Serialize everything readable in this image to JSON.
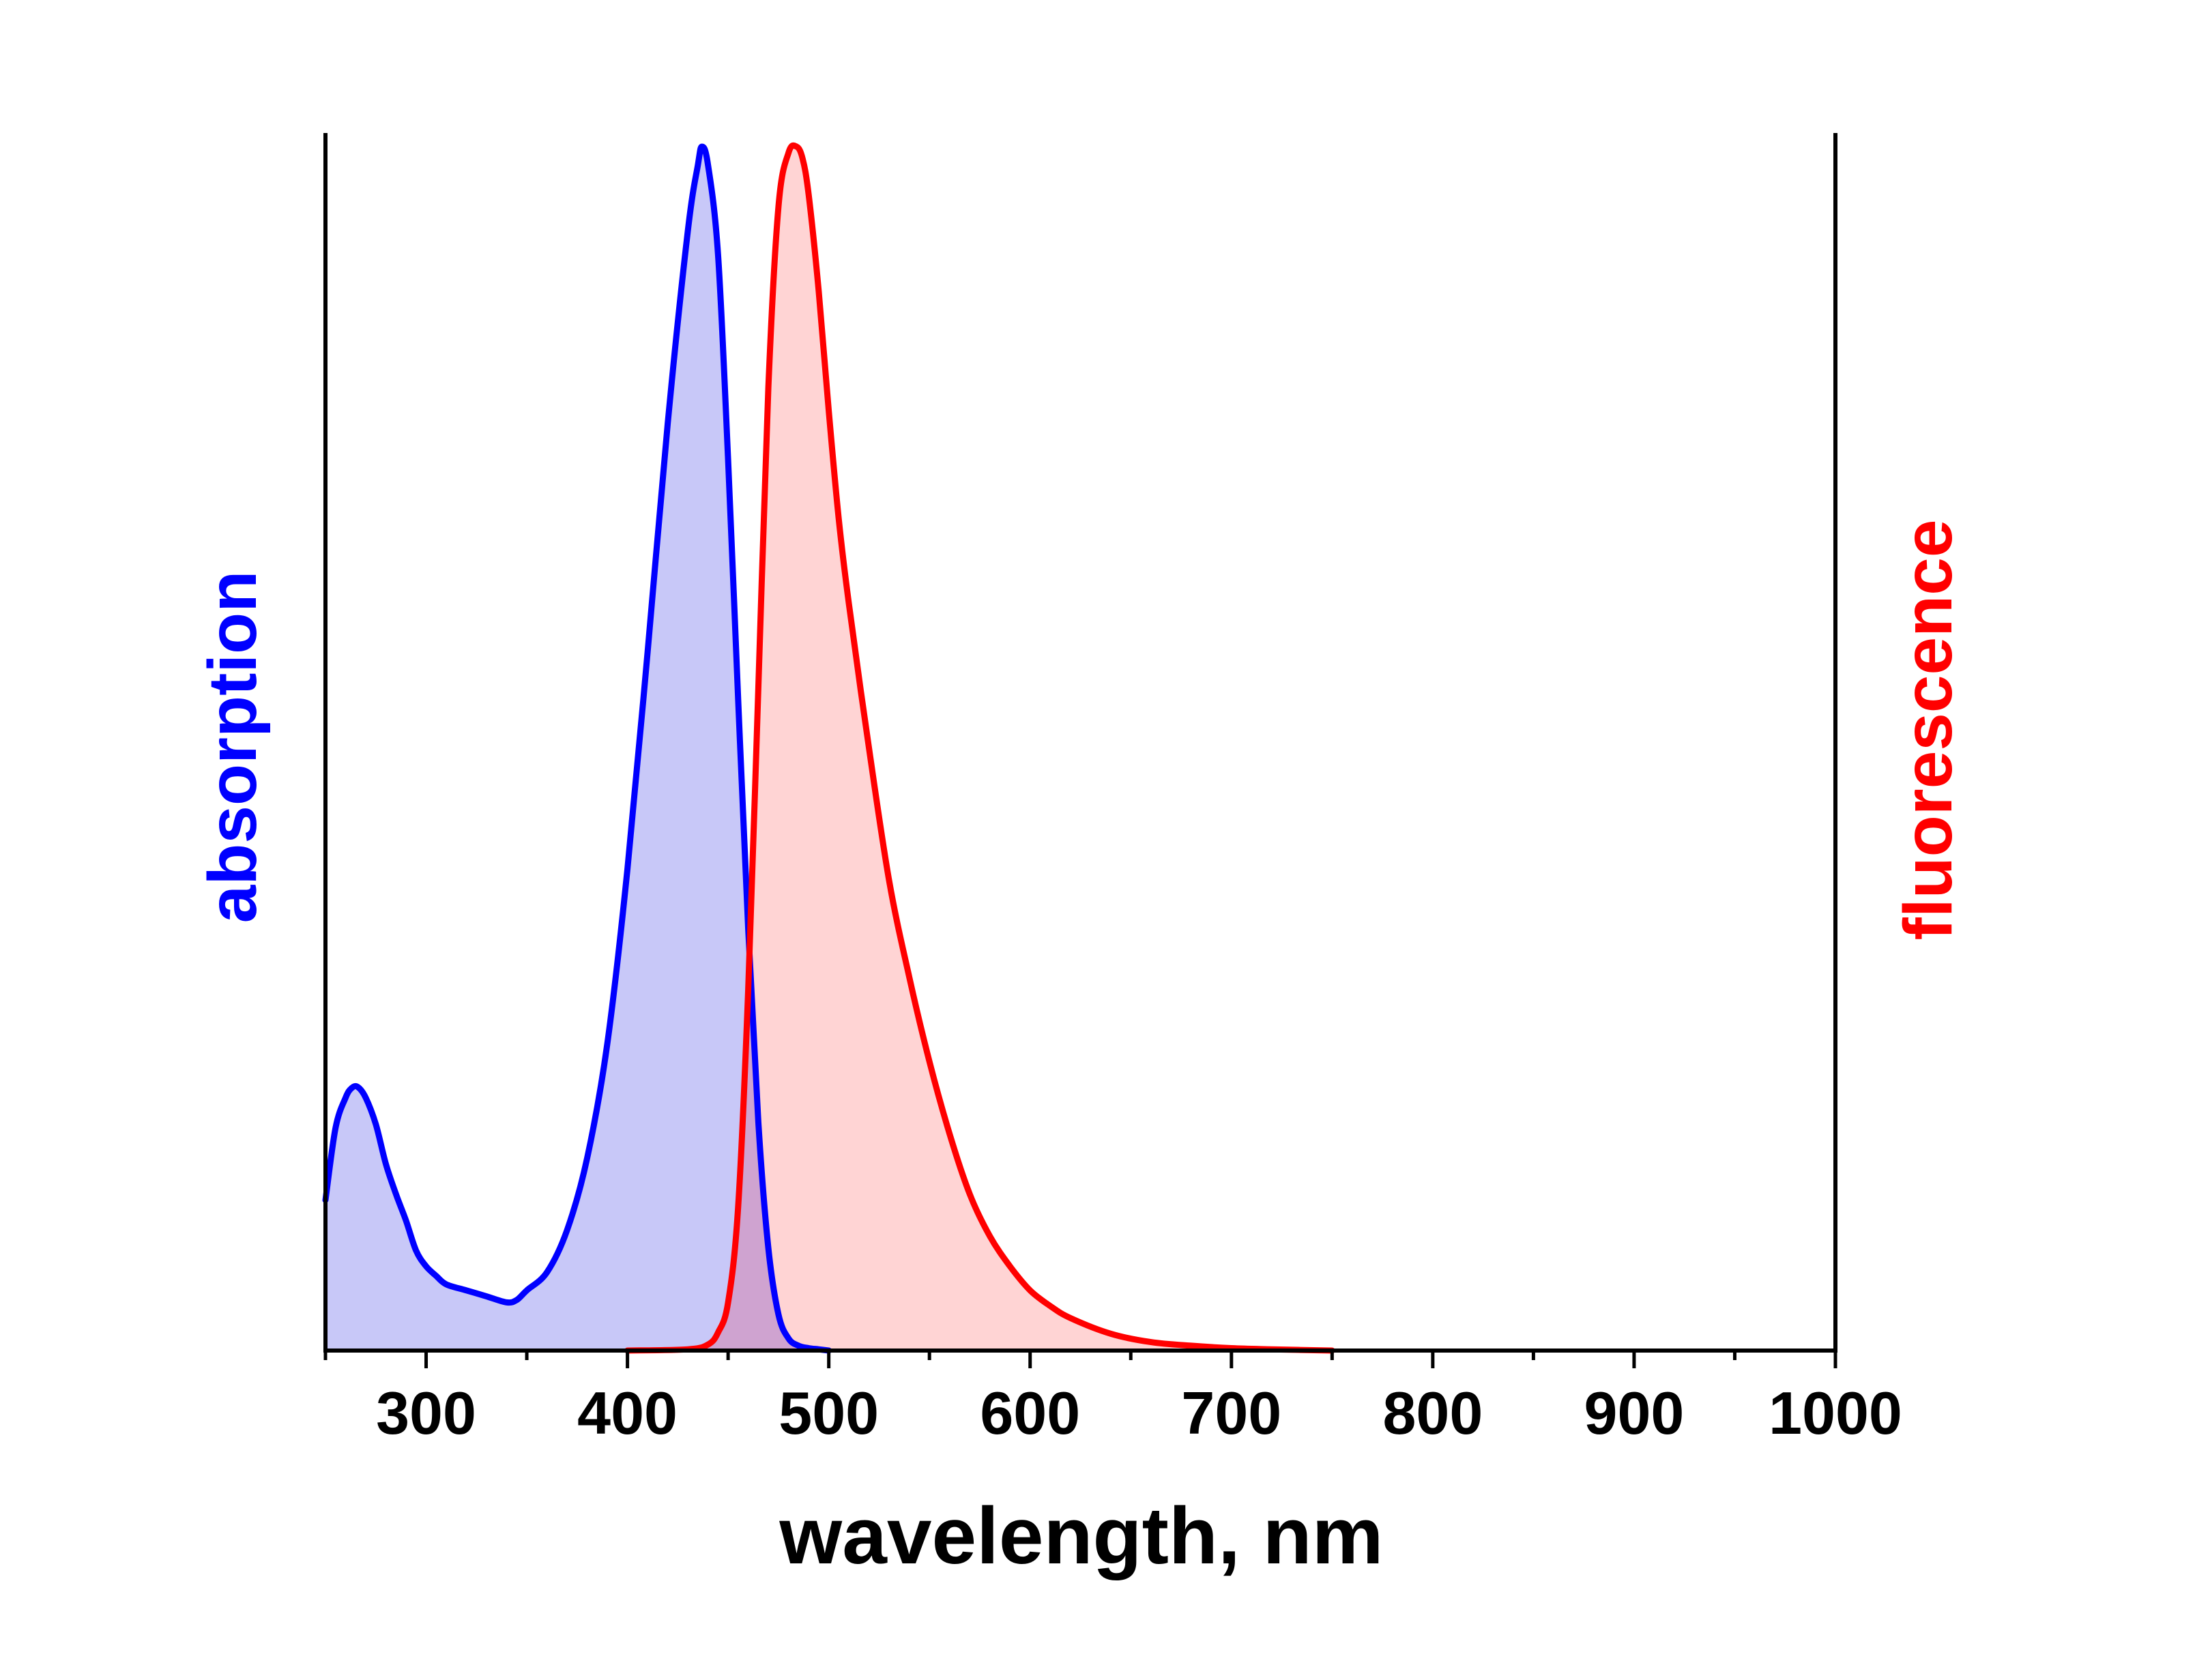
{
  "chart_data": {
    "type": "area",
    "xlabel": "wavelength, nm",
    "ylabel_left": "absorption",
    "ylabel_right": "fluorescence",
    "xlim": [
      250,
      1000
    ],
    "ylim": [
      0,
      1
    ],
    "x_ticks_major": [
      300,
      400,
      500,
      600,
      700,
      800,
      900,
      1000
    ],
    "x_ticks_minor": [
      250,
      350,
      450,
      550,
      650,
      750,
      850,
      950
    ],
    "grid": false,
    "legend": "none",
    "series": [
      {
        "axis": "left",
        "line_color": "#0000ff",
        "fill_color": "#c8c8f8",
        "x": [
          250,
          255,
          260,
          263,
          266,
          270,
          275,
          280,
          285,
          290,
          295,
          300,
          305,
          310,
          320,
          330,
          340,
          345,
          350,
          360,
          370,
          380,
          390,
          400,
          410,
          420,
          430,
          435,
          437,
          440,
          445,
          450,
          455,
          460,
          465,
          470,
          475,
          480,
          485,
          490,
          495,
          500
        ],
        "y": [
          0.125,
          0.185,
          0.21,
          0.218,
          0.219,
          0.21,
          0.188,
          0.155,
          0.13,
          0.108,
          0.083,
          0.07,
          0.062,
          0.055,
          0.05,
          0.045,
          0.04,
          0.042,
          0.05,
          0.065,
          0.1,
          0.16,
          0.255,
          0.4,
          0.58,
          0.77,
          0.93,
          0.985,
          1.0,
          0.985,
          0.91,
          0.74,
          0.54,
          0.35,
          0.19,
          0.085,
          0.03,
          0.01,
          0.004,
          0.002,
          0.001,
          0.0
        ]
      },
      {
        "axis": "right",
        "line_color": "#ff0000",
        "fill_color": "#ffcccc",
        "x": [
          400,
          430,
          440,
          445,
          450,
          455,
          460,
          465,
          470,
          475,
          480,
          484,
          487,
          490,
          495,
          500,
          505,
          510,
          520,
          530,
          540,
          550,
          560,
          570,
          580,
          590,
          600,
          610,
          620,
          640,
          660,
          680,
          700,
          720,
          750
        ],
        "y": [
          0.0,
          0.001,
          0.005,
          0.015,
          0.04,
          0.12,
          0.3,
          0.55,
          0.8,
          0.95,
          0.995,
          1.0,
          0.99,
          0.96,
          0.88,
          0.78,
          0.69,
          0.62,
          0.5,
          0.39,
          0.31,
          0.24,
          0.18,
          0.13,
          0.095,
          0.07,
          0.05,
          0.037,
          0.027,
          0.014,
          0.007,
          0.004,
          0.002,
          0.001,
          0.0
        ]
      }
    ]
  }
}
